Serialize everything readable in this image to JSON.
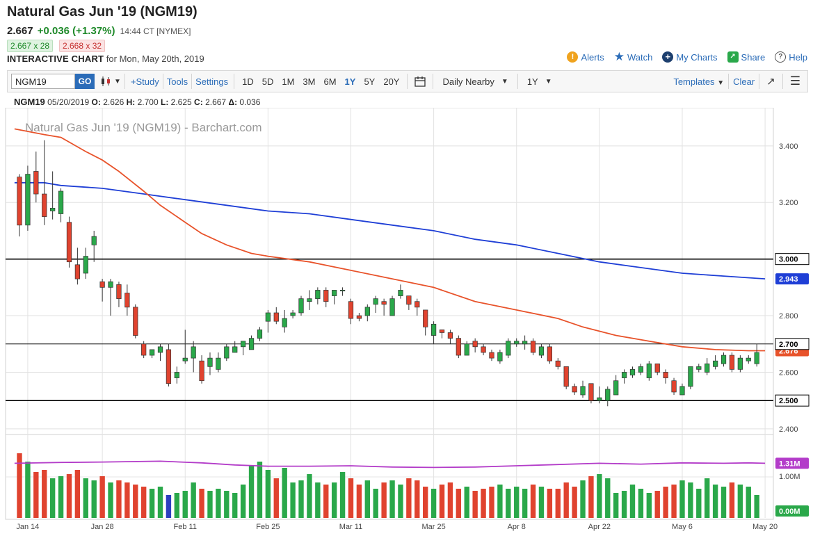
{
  "header": {
    "title": "Natural Gas Jun '19 (NGM19)",
    "last": "2.667",
    "change": "+0.036 (+1.37%)",
    "time": "14:44 CT [NYMEX]",
    "bid": "2.667 x 28",
    "ask": "2.668 x 32",
    "interactive_label": "INTERACTIVE CHART",
    "for_date": "for Mon, May 20th, 2019"
  },
  "links": {
    "alerts": "Alerts",
    "watch": "Watch",
    "my_charts": "My Charts",
    "share": "Share",
    "help": "Help"
  },
  "toolbar": {
    "symbol": "NGM19",
    "go": "GO",
    "study": "+Study",
    "tools": "Tools",
    "settings": "Settings",
    "ranges": [
      "1D",
      "5D",
      "1M",
      "3M",
      "6M",
      "1Y",
      "5Y",
      "20Y"
    ],
    "active_range": "1Y",
    "contract_mode": "Daily Nearby",
    "period": "1Y",
    "templates": "Templates",
    "clear": "Clear"
  },
  "ohlc": {
    "symbol": "NGM19",
    "date": "05/20/2019",
    "open": "2.626",
    "high": "2.700",
    "low": "2.625",
    "close": "2.667",
    "delta": "0.036"
  },
  "colors": {
    "up": "#2aa84a",
    "down": "#e0432f",
    "ma_short": "#e8532b",
    "ma_long": "#1f3fd6",
    "volume_avg": "#b33cc9",
    "accent": "#2b6cb8"
  },
  "chart_data": {
    "type": "candlestick",
    "title": "Natural Gas Jun '19 (NGM19) - Barchart.com",
    "price_ticks": [
      2.4,
      2.6,
      2.8,
      3.0,
      3.2,
      3.4
    ],
    "price_tick_labels": [
      "2.400",
      "2.600",
      "2.800",
      "3.000",
      "3.200",
      "3.400"
    ],
    "price_range": [
      2.38,
      3.52
    ],
    "x_range": [
      0,
      91
    ],
    "date_ticks": [
      {
        "i": 1,
        "label": "Jan 14"
      },
      {
        "i": 10,
        "label": "Jan 28"
      },
      {
        "i": 20,
        "label": "Feb 11"
      },
      {
        "i": 30,
        "label": "Feb 25"
      },
      {
        "i": 40,
        "label": "Mar 11"
      },
      {
        "i": 50,
        "label": "Mar 25"
      },
      {
        "i": 60,
        "label": "Apr 8"
      },
      {
        "i": 70,
        "label": "Apr 22"
      },
      {
        "i": 80,
        "label": "May 6"
      },
      {
        "i": 90,
        "label": "May 20"
      }
    ],
    "horizontal_lines": [
      {
        "price": 3.0,
        "label": "3.000"
      },
      {
        "price": 2.7,
        "label": "2.700"
      },
      {
        "price": 2.5,
        "label": "2.500"
      }
    ],
    "ma_short_label": "2.676",
    "ma_long_label": "2.943",
    "volume_avg_label": "1.31M",
    "volume_tick_label": "1.00M",
    "volume_zero_label": "0.00M",
    "candles": [
      [
        3.29,
        3.12,
        3.3,
        3.08
      ],
      [
        3.12,
        3.3,
        3.33,
        3.1
      ],
      [
        3.31,
        3.23,
        3.38,
        3.2
      ],
      [
        3.23,
        3.15,
        3.42,
        3.12
      ],
      [
        3.17,
        3.18,
        3.31,
        3.14
      ],
      [
        3.16,
        3.24,
        3.25,
        3.13
      ],
      [
        3.13,
        2.99,
        3.15,
        2.97
      ],
      [
        2.98,
        2.93,
        3.04,
        2.91
      ],
      [
        2.95,
        3.01,
        3.04,
        2.93
      ],
      [
        3.05,
        3.08,
        3.1,
        2.99
      ],
      [
        2.92,
        2.9,
        2.93,
        2.85
      ],
      [
        2.9,
        2.92,
        2.93,
        2.8
      ],
      [
        2.91,
        2.86,
        2.92,
        2.83
      ],
      [
        2.88,
        2.83,
        2.91,
        2.8
      ],
      [
        2.83,
        2.73,
        2.84,
        2.72
      ],
      [
        2.7,
        2.66,
        2.71,
        2.65
      ],
      [
        2.66,
        2.68,
        2.68,
        2.65
      ],
      [
        2.67,
        2.69,
        2.7,
        2.64
      ],
      [
        2.68,
        2.56,
        2.7,
        2.55
      ],
      [
        2.58,
        2.6,
        2.62,
        2.56
      ],
      [
        2.64,
        2.65,
        2.75,
        2.63
      ],
      [
        2.65,
        2.69,
        2.71,
        2.6
      ],
      [
        2.64,
        2.57,
        2.66,
        2.56
      ],
      [
        2.62,
        2.65,
        2.67,
        2.59
      ],
      [
        2.61,
        2.65,
        2.67,
        2.6
      ],
      [
        2.65,
        2.69,
        2.7,
        2.64
      ],
      [
        2.67,
        2.69,
        2.71,
        2.67
      ],
      [
        2.69,
        2.71,
        2.71,
        2.66
      ],
      [
        2.68,
        2.72,
        2.73,
        2.68
      ],
      [
        2.72,
        2.75,
        2.76,
        2.71
      ],
      [
        2.78,
        2.81,
        2.82,
        2.74
      ],
      [
        2.81,
        2.78,
        2.83,
        2.77
      ],
      [
        2.76,
        2.79,
        2.82,
        2.74
      ],
      [
        2.8,
        2.81,
        2.82,
        2.79
      ],
      [
        2.81,
        2.86,
        2.87,
        2.8
      ],
      [
        2.85,
        2.86,
        2.89,
        2.82
      ],
      [
        2.86,
        2.89,
        2.9,
        2.84
      ],
      [
        2.89,
        2.85,
        2.9,
        2.83
      ],
      [
        2.87,
        2.89,
        2.89,
        2.84
      ],
      [
        2.89,
        2.89,
        2.9,
        2.87
      ],
      [
        2.85,
        2.79,
        2.86,
        2.77
      ],
      [
        2.8,
        2.79,
        2.81,
        2.78
      ],
      [
        2.8,
        2.83,
        2.84,
        2.78
      ],
      [
        2.84,
        2.86,
        2.87,
        2.81
      ],
      [
        2.85,
        2.84,
        2.86,
        2.8
      ],
      [
        2.8,
        2.86,
        2.87,
        2.8
      ],
      [
        2.87,
        2.89,
        2.91,
        2.86
      ],
      [
        2.87,
        2.84,
        2.87,
        2.82
      ],
      [
        2.85,
        2.83,
        2.86,
        2.8
      ],
      [
        2.82,
        2.76,
        2.82,
        2.73
      ],
      [
        2.73,
        2.77,
        2.78,
        2.7
      ],
      [
        2.75,
        2.74,
        2.75,
        2.72
      ],
      [
        2.74,
        2.72,
        2.75,
        2.7
      ],
      [
        2.72,
        2.66,
        2.73,
        2.65
      ],
      [
        2.66,
        2.7,
        2.71,
        2.66
      ],
      [
        2.71,
        2.69,
        2.72,
        2.67
      ],
      [
        2.69,
        2.67,
        2.7,
        2.66
      ],
      [
        2.67,
        2.65,
        2.68,
        2.64
      ],
      [
        2.64,
        2.67,
        2.68,
        2.63
      ],
      [
        2.66,
        2.71,
        2.72,
        2.65
      ],
      [
        2.7,
        2.71,
        2.72,
        2.69
      ],
      [
        2.7,
        2.71,
        2.73,
        2.68
      ],
      [
        2.71,
        2.67,
        2.72,
        2.66
      ],
      [
        2.66,
        2.69,
        2.7,
        2.65
      ],
      [
        2.69,
        2.64,
        2.7,
        2.63
      ],
      [
        2.64,
        2.62,
        2.65,
        2.61
      ],
      [
        2.62,
        2.55,
        2.62,
        2.54
      ],
      [
        2.55,
        2.53,
        2.56,
        2.52
      ],
      [
        2.52,
        2.55,
        2.57,
        2.51
      ],
      [
        2.56,
        2.5,
        2.56,
        2.49
      ],
      [
        2.5,
        2.51,
        2.55,
        2.49
      ],
      [
        2.5,
        2.54,
        2.55,
        2.48
      ],
      [
        2.52,
        2.57,
        2.59,
        2.52
      ],
      [
        2.58,
        2.6,
        2.61,
        2.56
      ],
      [
        2.59,
        2.61,
        2.62,
        2.58
      ],
      [
        2.6,
        2.62,
        2.63,
        2.59
      ],
      [
        2.58,
        2.63,
        2.64,
        2.57
      ],
      [
        2.63,
        2.6,
        2.63,
        2.59
      ],
      [
        2.6,
        2.58,
        2.61,
        2.56
      ],
      [
        2.57,
        2.53,
        2.58,
        2.52
      ],
      [
        2.52,
        2.55,
        2.56,
        2.52
      ],
      [
        2.55,
        2.62,
        2.62,
        2.54
      ],
      [
        2.61,
        2.62,
        2.63,
        2.6
      ],
      [
        2.6,
        2.63,
        2.65,
        2.59
      ],
      [
        2.62,
        2.64,
        2.66,
        2.61
      ],
      [
        2.63,
        2.66,
        2.67,
        2.62
      ],
      [
        2.66,
        2.61,
        2.67,
        2.6
      ],
      [
        2.61,
        2.65,
        2.66,
        2.6
      ],
      [
        2.64,
        2.65,
        2.66,
        2.63
      ],
      [
        2.63,
        2.67,
        2.7,
        2.62
      ]
    ],
    "ma_short": [
      [
        -0.6,
        3.46
      ],
      [
        3,
        3.44
      ],
      [
        5,
        3.43
      ],
      [
        8,
        3.38
      ],
      [
        10,
        3.35
      ],
      [
        12,
        3.31
      ],
      [
        15,
        3.24
      ],
      [
        17,
        3.19
      ],
      [
        20,
        3.13
      ],
      [
        22,
        3.09
      ],
      [
        25,
        3.05
      ],
      [
        28,
        3.02
      ],
      [
        30,
        3.01
      ],
      [
        35,
        2.99
      ],
      [
        40,
        2.96
      ],
      [
        45,
        2.93
      ],
      [
        50,
        2.9
      ],
      [
        55,
        2.85
      ],
      [
        60,
        2.82
      ],
      [
        65,
        2.79
      ],
      [
        68,
        2.76
      ],
      [
        72,
        2.73
      ],
      [
        76,
        2.71
      ],
      [
        80,
        2.69
      ],
      [
        84,
        2.68
      ],
      [
        88,
        2.676
      ],
      [
        90,
        2.676
      ]
    ],
    "ma_long": [
      [
        -0.6,
        3.27
      ],
      [
        3,
        3.27
      ],
      [
        5,
        3.26
      ],
      [
        10,
        3.25
      ],
      [
        15,
        3.23
      ],
      [
        20,
        3.21
      ],
      [
        25,
        3.19
      ],
      [
        30,
        3.17
      ],
      [
        35,
        3.16
      ],
      [
        40,
        3.14
      ],
      [
        45,
        3.12
      ],
      [
        50,
        3.1
      ],
      [
        55,
        3.07
      ],
      [
        60,
        3.05
      ],
      [
        65,
        3.02
      ],
      [
        70,
        2.99
      ],
      [
        75,
        2.97
      ],
      [
        80,
        2.95
      ],
      [
        85,
        2.94
      ],
      [
        90,
        2.93
      ]
    ],
    "volume": [
      1.55,
      1.35,
      1.1,
      1.15,
      0.95,
      1.0,
      1.05,
      1.15,
      0.95,
      0.9,
      1.0,
      0.85,
      0.9,
      0.85,
      0.8,
      0.75,
      0.7,
      0.75,
      0.55,
      0.6,
      0.65,
      0.85,
      0.7,
      0.65,
      0.7,
      0.65,
      0.6,
      0.8,
      1.25,
      1.35,
      1.15,
      0.95,
      1.2,
      0.85,
      0.9,
      1.05,
      0.85,
      0.8,
      0.85,
      1.1,
      0.95,
      0.8,
      0.9,
      0.7,
      0.85,
      0.9,
      0.8,
      0.95,
      0.9,
      0.75,
      0.7,
      0.8,
      0.85,
      0.7,
      0.75,
      0.65,
      0.7,
      0.75,
      0.8,
      0.7,
      0.75,
      0.7,
      0.8,
      0.75,
      0.7,
      0.7,
      0.85,
      0.75,
      0.9,
      1.0,
      1.05,
      0.95,
      0.6,
      0.65,
      0.8,
      0.7,
      0.6,
      0.65,
      0.75,
      0.8,
      0.9,
      0.85,
      0.7,
      0.95,
      0.8,
      0.75,
      0.85,
      0.8,
      0.75,
      0.55
    ],
    "volume_blue_index": 18,
    "volume_avg": [
      [
        -0.6,
        1.31
      ],
      [
        5,
        1.33
      ],
      [
        10,
        1.34
      ],
      [
        17,
        1.36
      ],
      [
        22,
        1.32
      ],
      [
        26,
        1.27
      ],
      [
        30,
        1.24
      ],
      [
        35,
        1.24
      ],
      [
        40,
        1.25
      ],
      [
        45,
        1.22
      ],
      [
        50,
        1.21
      ],
      [
        55,
        1.22
      ],
      [
        60,
        1.25
      ],
      [
        65,
        1.28
      ],
      [
        70,
        1.31
      ],
      [
        75,
        1.29
      ],
      [
        80,
        1.32
      ],
      [
        85,
        1.31
      ],
      [
        88,
        1.32
      ],
      [
        90,
        1.31
      ]
    ],
    "volume_range": [
      0,
      1.95
    ]
  }
}
